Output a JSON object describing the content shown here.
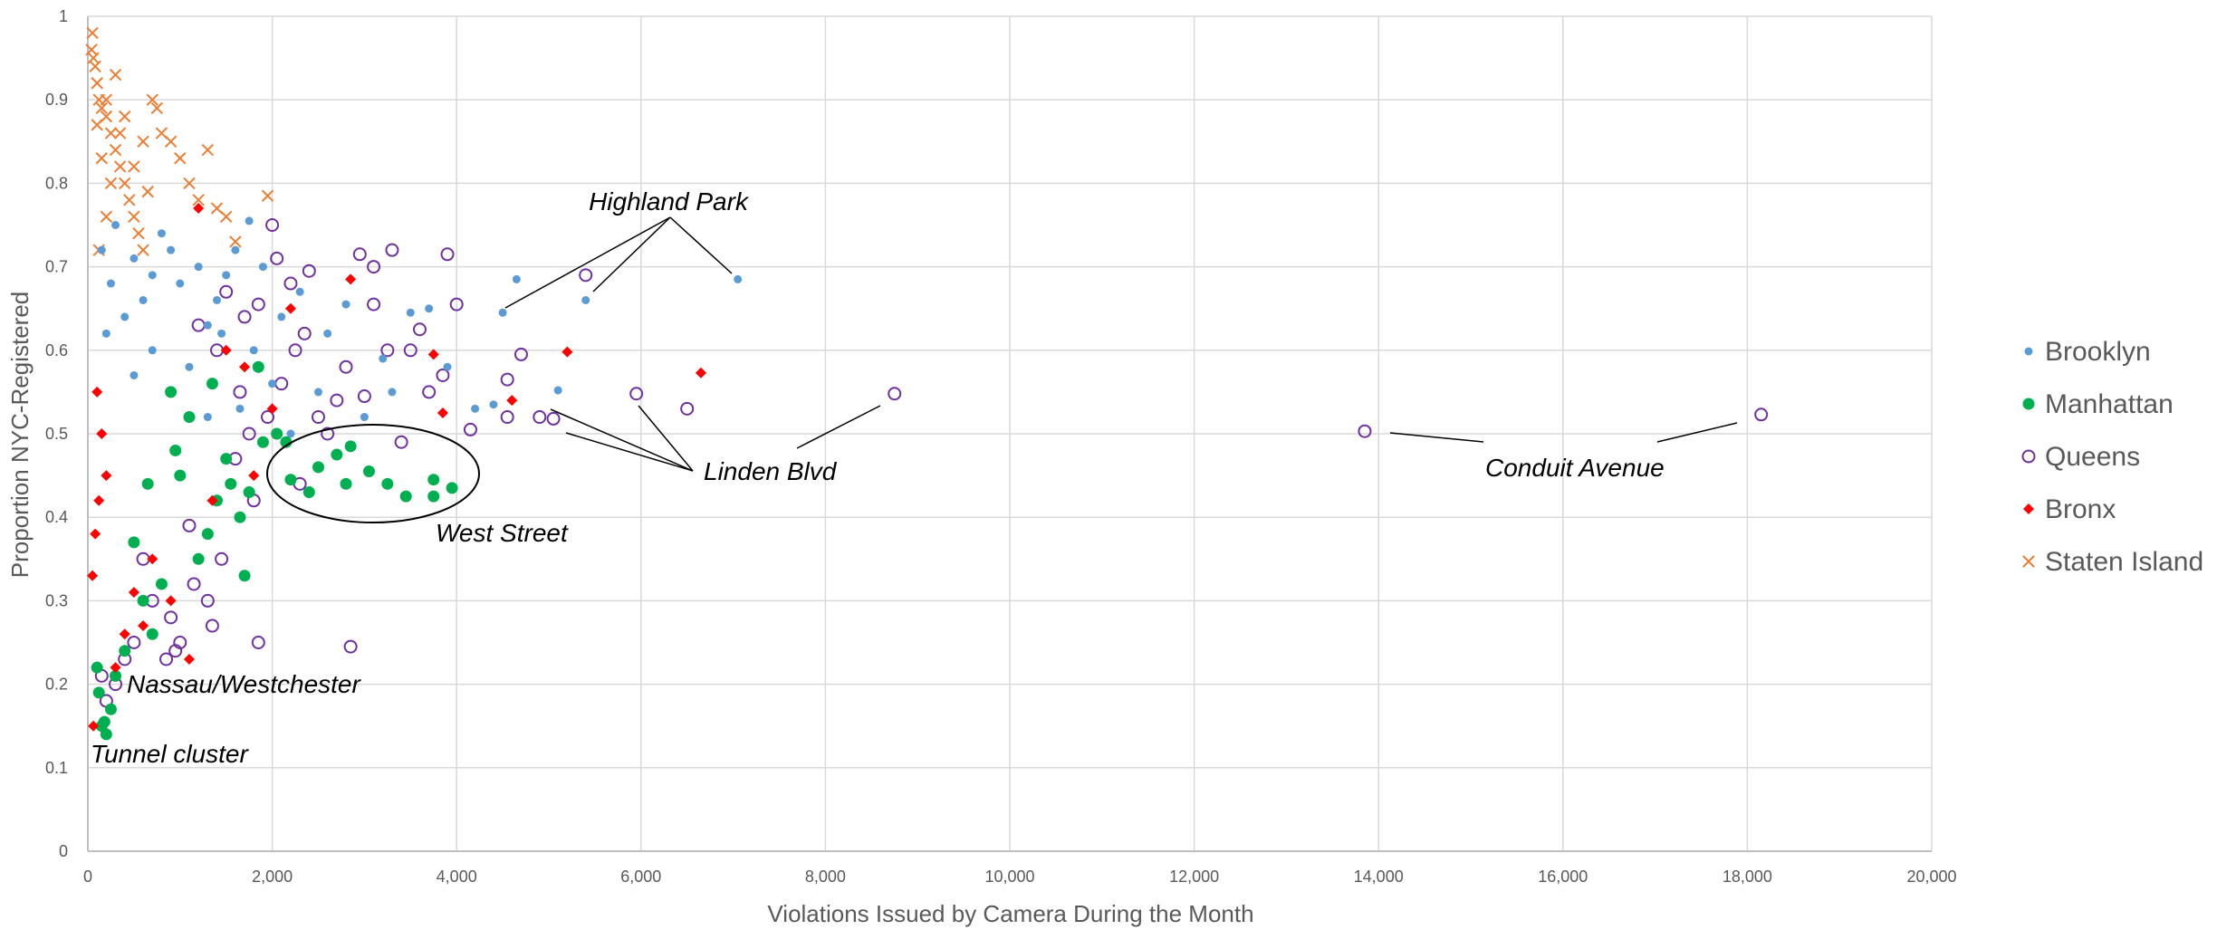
{
  "chart_data": {
    "type": "scatter",
    "xlabel": "Violations Issued by Camera During the Month",
    "ylabel": "Proportion NYC-Registered",
    "xlim": [
      0,
      20000
    ],
    "ylim": [
      0,
      1
    ],
    "x_ticks": [
      0,
      2000,
      4000,
      6000,
      8000,
      10000,
      12000,
      14000,
      16000,
      18000,
      20000
    ],
    "x_tick_labels": [
      "0",
      "2,000",
      "4,000",
      "6,000",
      "8,000",
      "10,000",
      "12,000",
      "14,000",
      "16,000",
      "18,000",
      "20,000"
    ],
    "y_ticks": [
      0,
      0.1,
      0.2,
      0.3,
      0.4,
      0.5,
      0.6,
      0.7,
      0.8,
      0.9,
      1
    ],
    "y_tick_labels": [
      "0",
      "0.1",
      "0.2",
      "0.3",
      "0.4",
      "0.5",
      "0.6",
      "0.7",
      "0.8",
      "0.9",
      "1"
    ],
    "grid": true,
    "legend_position": "right",
    "series": [
      {
        "name": "Brooklyn",
        "marker": "circle-small",
        "color": "#5B9BD5",
        "points": [
          [
            7050,
            0.685
          ],
          [
            5400,
            0.66
          ],
          [
            4650,
            0.685
          ],
          [
            4500,
            0.645
          ],
          [
            5100,
            0.552
          ],
          [
            4400,
            0.535
          ],
          [
            3700,
            0.65
          ],
          [
            3500,
            0.645
          ],
          [
            3200,
            0.59
          ],
          [
            2800,
            0.655
          ],
          [
            2600,
            0.62
          ],
          [
            2300,
            0.67
          ],
          [
            2100,
            0.64
          ],
          [
            1900,
            0.7
          ],
          [
            1750,
            0.755
          ],
          [
            1600,
            0.72
          ],
          [
            1500,
            0.69
          ],
          [
            1400,
            0.66
          ],
          [
            1300,
            0.63
          ],
          [
            1200,
            0.7
          ],
          [
            1000,
            0.68
          ],
          [
            900,
            0.72
          ],
          [
            800,
            0.74
          ],
          [
            700,
            0.69
          ],
          [
            600,
            0.66
          ],
          [
            500,
            0.71
          ],
          [
            400,
            0.64
          ],
          [
            300,
            0.75
          ],
          [
            250,
            0.68
          ],
          [
            200,
            0.62
          ],
          [
            150,
            0.72
          ],
          [
            1800,
            0.6
          ],
          [
            2500,
            0.55
          ],
          [
            3000,
            0.52
          ],
          [
            2200,
            0.5
          ],
          [
            3900,
            0.58
          ],
          [
            4200,
            0.53
          ],
          [
            1100,
            0.58
          ],
          [
            900,
            0.55
          ],
          [
            1300,
            0.52
          ],
          [
            700,
            0.6
          ],
          [
            500,
            0.57
          ],
          [
            2000,
            0.56
          ],
          [
            1650,
            0.53
          ],
          [
            1450,
            0.62
          ],
          [
            3300,
            0.55
          ]
        ]
      },
      {
        "name": "Manhattan",
        "marker": "circle-large",
        "color": "#00B050",
        "points": [
          [
            3950,
            0.435
          ],
          [
            3750,
            0.425
          ],
          [
            3750,
            0.445
          ],
          [
            3450,
            0.425
          ],
          [
            3250,
            0.44
          ],
          [
            3050,
            0.455
          ],
          [
            2800,
            0.44
          ],
          [
            2850,
            0.485
          ],
          [
            2700,
            0.475
          ],
          [
            2500,
            0.46
          ],
          [
            2400,
            0.43
          ],
          [
            2200,
            0.445
          ],
          [
            2150,
            0.49
          ],
          [
            2050,
            0.5
          ],
          [
            1900,
            0.49
          ],
          [
            1750,
            0.43
          ],
          [
            1700,
            0.33
          ],
          [
            1650,
            0.4
          ],
          [
            1500,
            0.47
          ],
          [
            1400,
            0.42
          ],
          [
            1300,
            0.38
          ],
          [
            1200,
            0.35
          ],
          [
            1100,
            0.52
          ],
          [
            1000,
            0.45
          ],
          [
            900,
            0.55
          ],
          [
            800,
            0.32
          ],
          [
            700,
            0.26
          ],
          [
            600,
            0.3
          ],
          [
            500,
            0.37
          ],
          [
            400,
            0.24
          ],
          [
            250,
            0.17
          ],
          [
            200,
            0.14
          ],
          [
            180,
            0.155
          ],
          [
            150,
            0.15
          ],
          [
            120,
            0.19
          ],
          [
            100,
            0.22
          ],
          [
            300,
            0.21
          ],
          [
            1550,
            0.44
          ],
          [
            1350,
            0.56
          ],
          [
            1850,
            0.58
          ],
          [
            950,
            0.48
          ],
          [
            650,
            0.44
          ]
        ]
      },
      {
        "name": "Queens",
        "marker": "circle-open",
        "color": "#7030A0",
        "points": [
          [
            18150,
            0.523
          ],
          [
            13850,
            0.503
          ],
          [
            8750,
            0.548
          ],
          [
            6500,
            0.53
          ],
          [
            5950,
            0.548
          ],
          [
            5400,
            0.69
          ],
          [
            5050,
            0.518
          ],
          [
            4900,
            0.52
          ],
          [
            4700,
            0.595
          ],
          [
            4550,
            0.565
          ],
          [
            4550,
            0.52
          ],
          [
            4150,
            0.505
          ],
          [
            4000,
            0.655
          ],
          [
            3900,
            0.715
          ],
          [
            3850,
            0.57
          ],
          [
            3700,
            0.55
          ],
          [
            3600,
            0.625
          ],
          [
            3500,
            0.6
          ],
          [
            3400,
            0.49
          ],
          [
            3300,
            0.72
          ],
          [
            3250,
            0.6
          ],
          [
            3100,
            0.7
          ],
          [
            3100,
            0.655
          ],
          [
            3000,
            0.545
          ],
          [
            2950,
            0.715
          ],
          [
            2850,
            0.245
          ],
          [
            2800,
            0.58
          ],
          [
            2700,
            0.54
          ],
          [
            2600,
            0.5
          ],
          [
            2500,
            0.52
          ],
          [
            2400,
            0.695
          ],
          [
            2350,
            0.62
          ],
          [
            2300,
            0.44
          ],
          [
            2250,
            0.6
          ],
          [
            2200,
            0.68
          ],
          [
            2100,
            0.56
          ],
          [
            2050,
            0.71
          ],
          [
            2000,
            0.75
          ],
          [
            1950,
            0.52
          ],
          [
            1850,
            0.655
          ],
          [
            1850,
            0.25
          ],
          [
            1800,
            0.42
          ],
          [
            1750,
            0.5
          ],
          [
            1700,
            0.64
          ],
          [
            1650,
            0.55
          ],
          [
            1600,
            0.47
          ],
          [
            1500,
            0.67
          ],
          [
            1450,
            0.35
          ],
          [
            1400,
            0.6
          ],
          [
            1350,
            0.27
          ],
          [
            1300,
            0.3
          ],
          [
            1200,
            0.63
          ],
          [
            1150,
            0.32
          ],
          [
            1100,
            0.39
          ],
          [
            1000,
            0.25
          ],
          [
            950,
            0.24
          ],
          [
            900,
            0.28
          ],
          [
            850,
            0.23
          ],
          [
            700,
            0.3
          ],
          [
            600,
            0.35
          ],
          [
            500,
            0.25
          ],
          [
            400,
            0.23
          ],
          [
            300,
            0.2
          ],
          [
            200,
            0.18
          ],
          [
            150,
            0.21
          ]
        ]
      },
      {
        "name": "Bronx",
        "marker": "diamond",
        "color": "#FF0000",
        "points": [
          [
            6650,
            0.573
          ],
          [
            5200,
            0.598
          ],
          [
            4600,
            0.54
          ],
          [
            3850,
            0.525
          ],
          [
            3750,
            0.595
          ],
          [
            2850,
            0.685
          ],
          [
            1350,
            0.42
          ],
          [
            1100,
            0.23
          ],
          [
            900,
            0.3
          ],
          [
            700,
            0.35
          ],
          [
            600,
            0.27
          ],
          [
            500,
            0.31
          ],
          [
            400,
            0.26
          ],
          [
            300,
            0.22
          ],
          [
            200,
            0.45
          ],
          [
            150,
            0.5
          ],
          [
            100,
            0.55
          ],
          [
            120,
            0.42
          ],
          [
            80,
            0.38
          ],
          [
            60,
            0.15
          ],
          [
            50,
            0.33
          ],
          [
            1200,
            0.77
          ],
          [
            2200,
            0.65
          ],
          [
            1700,
            0.58
          ],
          [
            1500,
            0.6
          ],
          [
            2000,
            0.53
          ],
          [
            1800,
            0.45
          ]
        ]
      },
      {
        "name": "Staten Island",
        "marker": "x",
        "color": "#ED7D31",
        "points": [
          [
            50,
            0.98
          ],
          [
            40,
            0.96
          ],
          [
            60,
            0.95
          ],
          [
            80,
            0.94
          ],
          [
            100,
            0.92
          ],
          [
            120,
            0.9
          ],
          [
            150,
            0.89
          ],
          [
            200,
            0.88
          ],
          [
            250,
            0.86
          ],
          [
            300,
            0.84
          ],
          [
            350,
            0.82
          ],
          [
            400,
            0.8
          ],
          [
            450,
            0.78
          ],
          [
            500,
            0.76
          ],
          [
            550,
            0.74
          ],
          [
            600,
            0.72
          ],
          [
            700,
            0.9
          ],
          [
            750,
            0.89
          ],
          [
            800,
            0.86
          ],
          [
            900,
            0.85
          ],
          [
            1000,
            0.83
          ],
          [
            1100,
            0.8
          ],
          [
            1200,
            0.78
          ],
          [
            1300,
            0.84
          ],
          [
            1400,
            0.77
          ],
          [
            1500,
            0.76
          ],
          [
            1600,
            0.73
          ],
          [
            1950,
            0.785
          ],
          [
            300,
            0.93
          ],
          [
            200,
            0.9
          ],
          [
            100,
            0.87
          ],
          [
            400,
            0.88
          ],
          [
            150,
            0.83
          ],
          [
            250,
            0.8
          ],
          [
            350,
            0.86
          ],
          [
            500,
            0.82
          ],
          [
            600,
            0.85
          ],
          [
            650,
            0.79
          ],
          [
            200,
            0.76
          ],
          [
            120,
            0.72
          ]
        ]
      }
    ],
    "annotations": [
      {
        "text": "Highland Park"
      },
      {
        "text": "Linden Blvd"
      },
      {
        "text": "Conduit Avenue"
      },
      {
        "text": "West Street"
      },
      {
        "text": "Nassau/Westchester"
      },
      {
        "text": "Tunnel cluster"
      }
    ]
  }
}
